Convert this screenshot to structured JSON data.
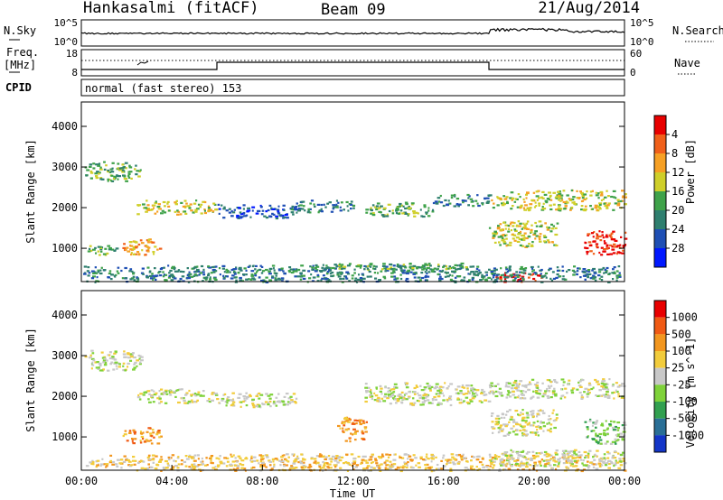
{
  "header": {
    "site": "Hankasalmi (fitACF)",
    "beam": "Beam 09",
    "date": "21/Aug/2014"
  },
  "top_panels": {
    "nsky_label": "N.Sky",
    "nsearch_label": "N.Search",
    "freq_label_1": "Freq.",
    "freq_label_2": "[MHz]",
    "nave_label": "Nave",
    "cpid_label": "CPID",
    "cpid_text": "normal (fast stereo) 153",
    "noise_left_ticks": [
      "10^5",
      "10^0"
    ],
    "noise_right_ticks": [
      "10^5",
      "10^0"
    ],
    "freq_ticks": [
      "18",
      "8"
    ],
    "nave_ticks": [
      "60",
      "0"
    ]
  },
  "chart_data": [
    {
      "type": "heatmap",
      "quantity": "Power",
      "ylabel": "Slant Range [km]",
      "ylim": [
        180,
        4600
      ],
      "yticks": [
        1000,
        2000,
        3000,
        4000
      ],
      "xlim": [
        0,
        24
      ],
      "colorbar": {
        "label": "Power [dB]",
        "ticks": [
          "4",
          "8",
          "12",
          "16",
          "20",
          "24",
          "28"
        ],
        "colors": [
          "#0018ff",
          "#1f4fb4",
          "#2f7f6f",
          "#3fa24a",
          "#cfcf2a",
          "#f6a024",
          "#f0601a",
          "#e80000"
        ]
      },
      "regions": [
        {
          "t0": 0.1,
          "t1": 2.6,
          "r0": 2650,
          "r1": 3150,
          "level": 3
        },
        {
          "t0": 2.4,
          "t1": 6.0,
          "r0": 1850,
          "r1": 2200,
          "level": 4
        },
        {
          "t0": 1.8,
          "t1": 3.5,
          "r0": 850,
          "r1": 1250,
          "level": 5
        },
        {
          "t0": 0.2,
          "t1": 1.6,
          "r0": 850,
          "r1": 1100,
          "level": 3
        },
        {
          "t0": 6.0,
          "t1": 9.5,
          "r0": 1750,
          "r1": 2100,
          "level": 1
        },
        {
          "t0": 9.2,
          "t1": 12.0,
          "r0": 1900,
          "r1": 2200,
          "level": 2
        },
        {
          "t0": 12.5,
          "t1": 15.5,
          "r0": 1800,
          "r1": 2150,
          "level": 3
        },
        {
          "t0": 15.5,
          "t1": 18.0,
          "r0": 2050,
          "r1": 2350,
          "level": 2
        },
        {
          "t0": 18.0,
          "t1": 24.0,
          "r0": 1950,
          "r1": 2450,
          "level": 4
        },
        {
          "t0": 18.0,
          "t1": 21.0,
          "r0": 1050,
          "r1": 1700,
          "level": 4
        },
        {
          "t0": 22.2,
          "t1": 24.0,
          "r0": 850,
          "r1": 1450,
          "level": 7
        },
        {
          "t0": 18.3,
          "t1": 20.3,
          "r0": 180,
          "r1": 420,
          "level": 7
        },
        {
          "t0": 0.0,
          "t1": 24.0,
          "r0": 180,
          "r1": 600,
          "level": 2
        },
        {
          "t0": 10.0,
          "t1": 17.0,
          "r0": 500,
          "r1": 650,
          "level": 3
        }
      ]
    },
    {
      "type": "heatmap",
      "quantity": "Velocity",
      "ylabel": "Slant Range [km]",
      "xlabel": "Time UT",
      "ylim": [
        180,
        4600
      ],
      "yticks": [
        1000,
        2000,
        3000,
        4000
      ],
      "xlim": [
        0,
        24
      ],
      "xticks": [
        "00:00",
        "04:00",
        "08:00",
        "12:00",
        "16:00",
        "20:00",
        "00:00"
      ],
      "colorbar": {
        "label": "Velocity [m s^-1]",
        "ticks": [
          "1000",
          "500",
          "100",
          "25",
          "-25",
          "-100",
          "-500",
          "-1000"
        ],
        "colors": [
          "#1436c8",
          "#2a6f96",
          "#32a050",
          "#7fd23a",
          "#c8c8c8",
          "#f2cc3c",
          "#f2961e",
          "#f05a14",
          "#e80000"
        ]
      },
      "regions": [
        {
          "t0": 0.1,
          "t1": 2.6,
          "r0": 2650,
          "r1": 3150,
          "level": 4
        },
        {
          "t0": 2.4,
          "t1": 6.0,
          "r0": 1850,
          "r1": 2200,
          "level": 4
        },
        {
          "t0": 1.8,
          "t1": 3.5,
          "r0": 850,
          "r1": 1250,
          "level": 6
        },
        {
          "t0": 6.0,
          "t1": 9.5,
          "r0": 1750,
          "r1": 2100,
          "level": 4
        },
        {
          "t0": 11.2,
          "t1": 12.6,
          "r0": 900,
          "r1": 1500,
          "level": 6
        },
        {
          "t0": 12.5,
          "t1": 18.0,
          "r0": 1800,
          "r1": 2350,
          "level": 4
        },
        {
          "t0": 18.0,
          "t1": 24.0,
          "r0": 1950,
          "r1": 2450,
          "level": 4
        },
        {
          "t0": 18.0,
          "t1": 21.0,
          "r0": 1050,
          "r1": 1700,
          "level": 4
        },
        {
          "t0": 22.2,
          "t1": 24.0,
          "r0": 850,
          "r1": 1450,
          "level": 3
        },
        {
          "t0": 0.0,
          "t1": 24.0,
          "r0": 180,
          "r1": 600,
          "level": 5
        },
        {
          "t0": 18.0,
          "t1": 24.0,
          "r0": 300,
          "r1": 700,
          "level": 4
        }
      ]
    }
  ]
}
